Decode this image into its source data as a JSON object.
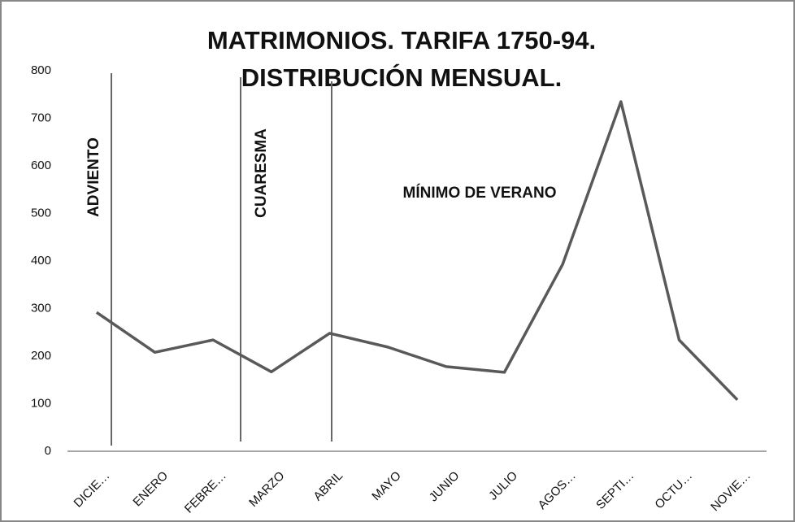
{
  "chart_data": {
    "type": "line",
    "title": [
      "MATRIMONIOS. TARIFA 1750-94.",
      "DISTRIBUCIÓN MENSUAL."
    ],
    "annotations": [
      "ADVIENTO",
      "CUARESMA",
      "MÍNIMO DE VERANO"
    ],
    "categories": [
      "DICIE…",
      "ENERO",
      "FEBRE…",
      "MARZO",
      "ABRIL",
      "MAYO",
      "JUNIO",
      "JULIO",
      "AGOS…",
      "SEPTI…",
      "OCTU…",
      "NOVIE…"
    ],
    "series": [
      {
        "name": "Matrimonios",
        "color": "#595959",
        "values": [
          292,
          208,
          234,
          167,
          248,
          219,
          178,
          166,
          393,
          735,
          234,
          108
        ]
      }
    ],
    "ylim": [
      0,
      800
    ],
    "yticks": [
      0,
      100,
      200,
      300,
      400,
      500,
      600,
      700,
      800
    ],
    "grid": false
  }
}
